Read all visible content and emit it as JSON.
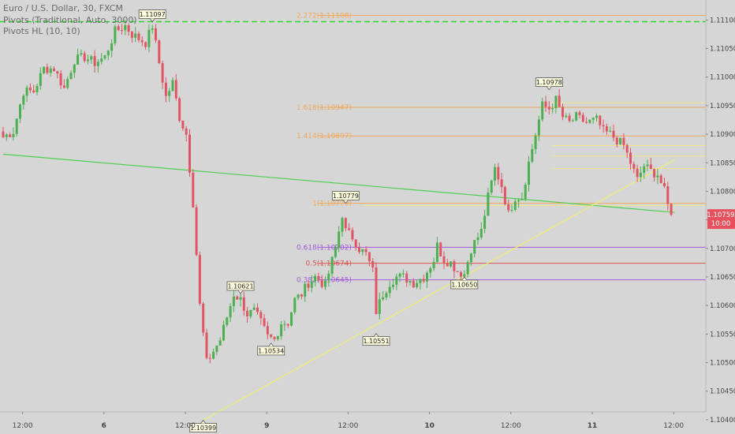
{
  "legend": {
    "symbol": "Euro / U.S. Dollar, 30, FXCM",
    "indicator1": "Pivots (Traditional, Auto, 3000)",
    "indicator2": "Pivots HL (10, 10)"
  },
  "colors": {
    "background": "#d6d6d6",
    "bull": "#4caf50",
    "bear": "#e05563",
    "pivot_green": "#2bd92b",
    "trend_green": "#4cd04c",
    "trend_yellow": "#f0ec70",
    "fib_orange": "#f0a85a",
    "fib_purple": "#a35bd8",
    "fib_red": "#d9534f",
    "label_bg": "#ffffe0"
  },
  "chart_data": {
    "type": "candlestick",
    "ylim": [
      1.10375,
      1.11135
    ],
    "y_ticks": [
      "1.11100",
      "1.11050",
      "1.11000",
      "1.10950",
      "1.10900",
      "1.10850",
      "1.10800",
      "1.10750",
      "1.10700",
      "1.10650",
      "1.10600",
      "1.10550",
      "1.10500",
      "1.10450",
      "1.10400"
    ],
    "x_ticks": [
      {
        "label": "12:00",
        "bar": 2
      },
      {
        "label": "6",
        "bar": 26
      },
      {
        "label": "12:00",
        "bar": 50
      },
      {
        "label": "9",
        "bar": 74
      },
      {
        "label": "12:00",
        "bar": 98
      },
      {
        "label": "10",
        "bar": 122
      },
      {
        "label": "12:00",
        "bar": 146
      },
      {
        "label": "11",
        "bar": 170
      },
      {
        "label": "12:00",
        "bar": 194
      }
    ],
    "last_price": "1.10759",
    "countdown": "10:00",
    "pivot_line": {
      "value": 1.11097
    },
    "fib_levels": [
      {
        "label": "2.272(1.11108)",
        "value": 1.11108,
        "color": "#f0a85a"
      },
      {
        "label": "1.618(1.10947)",
        "value": 1.10947,
        "color": "#f0a85a"
      },
      {
        "label": "1.414(1.10897)",
        "value": 1.10897,
        "color": "#f0a85a"
      },
      {
        "label": "1(1.10779)",
        "value": 1.10779,
        "color": "#f0a85a"
      },
      {
        "label": "0.618(1.10702)",
        "value": 1.10702,
        "color": "#a35bd8"
      },
      {
        "label": "0.5(1.10674)",
        "value": 1.10674,
        "color": "#d9534f"
      },
      {
        "label": "0.382(1.10645)",
        "value": 1.10645,
        "color": "#a35bd8"
      }
    ],
    "pivot_labels": [
      {
        "text": "1.11097",
        "bar": 44,
        "value": 1.11097,
        "pos": "above"
      },
      {
        "text": "1.10621",
        "bar": 70,
        "value": 1.10621,
        "pos": "above"
      },
      {
        "text": "1.10534",
        "bar": 79,
        "value": 1.10534,
        "pos": "below"
      },
      {
        "text": "1.10399",
        "bar": 59,
        "value": 1.10399,
        "pos": "below"
      },
      {
        "text": "1.10779",
        "bar": 101,
        "value": 1.10779,
        "pos": "above"
      },
      {
        "text": "1.10551",
        "bar": 110,
        "value": 1.10551,
        "pos": "below"
      },
      {
        "text": "1.10650",
        "bar": 136,
        "value": 1.1065,
        "pos": "below"
      },
      {
        "text": "1.10978",
        "bar": 161,
        "value": 1.10978,
        "pos": "above"
      }
    ],
    "trendlines": [
      {
        "from": [
          0,
          1.10865
        ],
        "to": [
          198,
          1.10763
        ],
        "color": "#4cd04c"
      },
      {
        "from": [
          59,
          1.10399
        ],
        "to": [
          198,
          1.10855
        ],
        "color": "#f0ec70"
      }
    ],
    "close_path": [
      [
        0,
        1.10895
      ],
      [
        3,
        1.10905
      ],
      [
        6,
        1.10975
      ],
      [
        9,
        1.10975
      ],
      [
        12,
        1.11015
      ],
      [
        15,
        1.11015
      ],
      [
        18,
        1.1098
      ],
      [
        21,
        1.1103
      ],
      [
        24,
        1.11035
      ],
      [
        27,
        1.11025
      ],
      [
        30,
        1.11035
      ],
      [
        33,
        1.1108
      ],
      [
        36,
        1.1109
      ],
      [
        38,
        1.11075
      ],
      [
        42,
        1.1106
      ],
      [
        44,
        1.1109
      ],
      [
        46,
        1.11025
      ],
      [
        48,
        1.10965
      ],
      [
        50,
        1.1099
      ],
      [
        52,
        1.1093
      ],
      [
        54,
        1.109
      ],
      [
        56,
        1.1078
      ],
      [
        57,
        1.1069
      ],
      [
        58,
        1.106
      ],
      [
        60,
        1.105
      ],
      [
        62,
        1.1052
      ],
      [
        64,
        1.1054
      ],
      [
        66,
        1.1058
      ],
      [
        68,
        1.1062
      ],
      [
        70,
        1.1061
      ],
      [
        72,
        1.10585
      ],
      [
        74,
        1.1059
      ],
      [
        76,
        1.1057
      ],
      [
        78,
        1.10545
      ],
      [
        80,
        1.1054
      ],
      [
        82,
        1.1057
      ],
      [
        84,
        1.1057
      ],
      [
        86,
        1.1061
      ],
      [
        88,
        1.1062
      ],
      [
        90,
        1.1064
      ],
      [
        92,
        1.1065
      ],
      [
        95,
        1.10635
      ],
      [
        98,
        1.107
      ],
      [
        100,
        1.1076
      ],
      [
        101,
        1.1073
      ],
      [
        103,
        1.1072
      ],
      [
        105,
        1.107
      ],
      [
        107,
        1.1069
      ],
      [
        109,
        1.1066
      ],
      [
        110,
        1.1059
      ],
      [
        112,
        1.1062
      ],
      [
        114,
        1.1064
      ],
      [
        116,
        1.1065
      ],
      [
        118,
        1.1065
      ],
      [
        121,
        1.1064
      ],
      [
        124,
        1.1065
      ],
      [
        127,
        1.1068
      ],
      [
        128,
        1.10705
      ],
      [
        130,
        1.1068
      ],
      [
        132,
        1.10675
      ],
      [
        134,
        1.1066
      ],
      [
        136,
        1.10655
      ],
      [
        138,
        1.107
      ],
      [
        141,
        1.1073
      ],
      [
        143,
        1.1079
      ],
      [
        145,
        1.1084
      ],
      [
        147,
        1.1081
      ],
      [
        149,
        1.1076
      ],
      [
        151,
        1.1079
      ],
      [
        153,
        1.1079
      ],
      [
        155,
        1.1085
      ],
      [
        157,
        1.109
      ],
      [
        159,
        1.1095
      ],
      [
        161,
        1.10945
      ],
      [
        163,
        1.1096
      ],
      [
        165,
        1.1093
      ],
      [
        167,
        1.1092
      ],
      [
        169,
        1.1093
      ],
      [
        172,
        1.1092
      ],
      [
        175,
        1.10925
      ],
      [
        177,
        1.10905
      ],
      [
        179,
        1.109
      ],
      [
        181,
        1.1089
      ],
      [
        183,
        1.1088
      ],
      [
        185,
        1.1085
      ],
      [
        187,
        1.1082
      ],
      [
        189,
        1.10845
      ],
      [
        191,
        1.10835
      ],
      [
        193,
        1.1083
      ],
      [
        195,
        1.108
      ],
      [
        196,
        1.10775
      ],
      [
        197,
        1.10759
      ]
    ]
  }
}
